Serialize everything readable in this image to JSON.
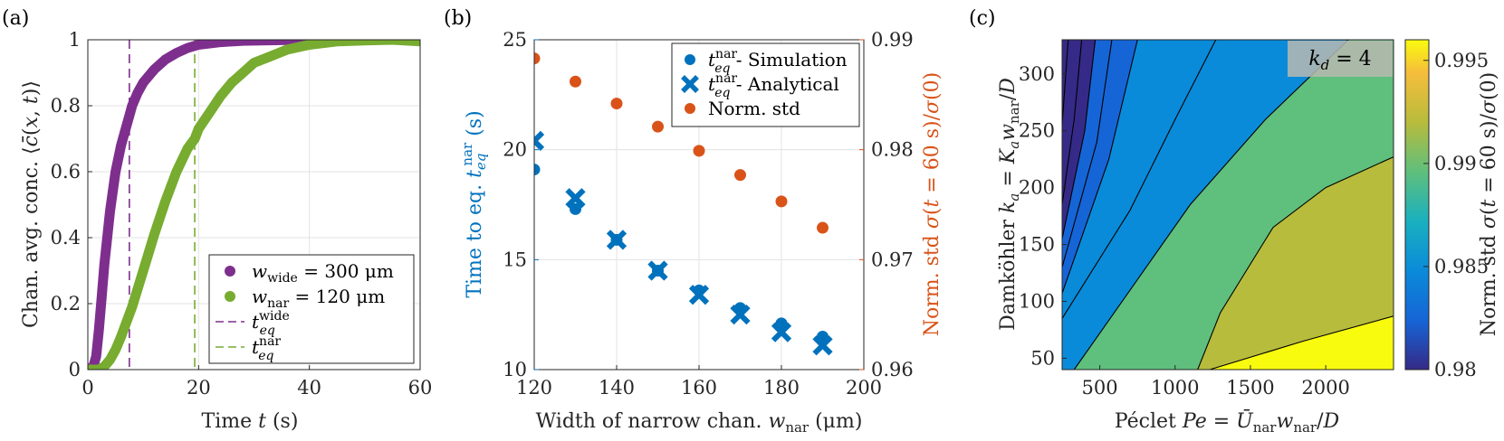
{
  "chart_data": [
    {
      "id": "a",
      "type": "line",
      "panel_label": "(a)",
      "xlabel": "Time t (s)",
      "ylabel": "Chan. avg. conc. ⟨c̄(x,t)⟩",
      "xlim": [
        0,
        60
      ],
      "ylim": [
        0,
        1
      ],
      "xticks": [
        0,
        20,
        40,
        60
      ],
      "yticks": [
        0,
        0.2,
        0.4,
        0.6,
        0.8,
        1
      ],
      "grid": true,
      "legend_position": "bottom-right",
      "series": [
        {
          "name": "w_wide = 300 μm",
          "color": "#7E2F8E",
          "points": [
            [
              0,
              0
            ],
            [
              1,
              0.01
            ],
            [
              1.5,
              0.04
            ],
            [
              2,
              0.12
            ],
            [
              2.5,
              0.22
            ],
            [
              3,
              0.32
            ],
            [
              4,
              0.48
            ],
            [
              5,
              0.6
            ],
            [
              6,
              0.68
            ],
            [
              7,
              0.74
            ],
            [
              7.5,
              0.77
            ],
            [
              8,
              0.8
            ],
            [
              9,
              0.84
            ],
            [
              10,
              0.87
            ],
            [
              12,
              0.91
            ],
            [
              14,
              0.94
            ],
            [
              16,
              0.96
            ],
            [
              18,
              0.975
            ],
            [
              20,
              0.985
            ],
            [
              24,
              0.993
            ],
            [
              28,
              0.997
            ],
            [
              35,
              0.999
            ],
            [
              45,
              1.0
            ],
            [
              60,
              1.0
            ]
          ]
        },
        {
          "name": "w_nar = 120 μm",
          "color": "#77AC30",
          "points": [
            [
              0,
              0
            ],
            [
              2,
              0
            ],
            [
              3,
              0.01
            ],
            [
              4,
              0.03
            ],
            [
              5,
              0.06
            ],
            [
              6,
              0.1
            ],
            [
              8,
              0.19
            ],
            [
              10,
              0.3
            ],
            [
              12,
              0.41
            ],
            [
              14,
              0.51
            ],
            [
              16,
              0.6
            ],
            [
              18,
              0.67
            ],
            [
              19.3,
              0.7
            ],
            [
              20,
              0.73
            ],
            [
              22,
              0.78
            ],
            [
              24,
              0.83
            ],
            [
              26,
              0.87
            ],
            [
              28,
              0.9
            ],
            [
              30,
              0.93
            ],
            [
              33,
              0.95
            ],
            [
              36,
              0.97
            ],
            [
              40,
              0.985
            ],
            [
              45,
              0.995
            ],
            [
              50,
              0.998
            ],
            [
              55,
              1.0
            ],
            [
              60,
              0.995
            ]
          ]
        }
      ],
      "vlines": [
        {
          "name": "t_eq^wide",
          "x": 7.5,
          "color": "#7E2F8E"
        },
        {
          "name": "t_eq^nar",
          "x": 19.3,
          "color": "#77AC30"
        }
      ],
      "legend": [
        {
          "kind": "dot",
          "color": "#7E2F8E",
          "main": "w",
          "sub": "wide",
          "rest": " = 300 μm"
        },
        {
          "kind": "dot",
          "color": "#77AC30",
          "main": "w",
          "sub": "nar",
          "rest": " = 120 μm"
        },
        {
          "kind": "dash",
          "color": "#7E2F8E",
          "main": "t",
          "sub": "eq",
          "sup": "wide",
          "rest": ""
        },
        {
          "kind": "dash",
          "color": "#77AC30",
          "main": "t",
          "sub": "eq",
          "sup": "nar",
          "rest": ""
        }
      ]
    },
    {
      "id": "b",
      "type": "scatter",
      "panel_label": "(b)",
      "xlabel": "Width of narrow chan. w_nar (μm)",
      "ylabel_left": "Time to eq. t_eq^nar (s)",
      "ylabel_right": "Norm. std σ(t = 60 s)/σ(0)",
      "xlim": [
        120,
        200
      ],
      "ylim_left": [
        10,
        25
      ],
      "ylim_right": [
        0.96,
        0.99
      ],
      "xticks": [
        120,
        140,
        160,
        180,
        200
      ],
      "yticks_left": [
        10,
        15,
        20,
        25
      ],
      "yticks_right": [
        0.96,
        0.97,
        0.98,
        0.99
      ],
      "grid": true,
      "legend_position": "top-right",
      "x": [
        120,
        130,
        140,
        150,
        160,
        170,
        180,
        190
      ],
      "series": [
        {
          "name": "t_eq^nar - Simulation",
          "axis": "left",
          "marker": "circle",
          "color": "#0072BD",
          "values": [
            19.1,
            17.3,
            15.9,
            14.5,
            13.6,
            12.8,
            12.1,
            11.5
          ]
        },
        {
          "name": "t_eq^nar - Analytical",
          "axis": "left",
          "marker": "x",
          "color": "#0072BD",
          "values": [
            20.4,
            17.8,
            15.9,
            14.5,
            13.4,
            12.5,
            11.7,
            11.1
          ]
        },
        {
          "name": "Norm. std",
          "axis": "right",
          "marker": "circle",
          "color": "#D95319",
          "values": [
            0.9883,
            0.9862,
            0.9842,
            0.9821,
            0.9799,
            0.9777,
            0.9753,
            0.9729
          ]
        }
      ],
      "legend": [
        {
          "kind": "circle",
          "color": "#0072BD",
          "main": "t",
          "sub": "eq",
          "sup": "nar",
          "rest": " - Simulation"
        },
        {
          "kind": "x",
          "color": "#0072BD",
          "main": "t",
          "sub": "eq",
          "sup": "nar",
          "rest": " - Analytical"
        },
        {
          "kind": "circle",
          "color": "#D95319",
          "main": "Norm. std",
          "sub": "",
          "sup": "",
          "rest": ""
        }
      ]
    },
    {
      "id": "c",
      "type": "heatmap",
      "panel_label": "(c)",
      "xlabel": "Péclet Pe = Ū_nar w_nar / D",
      "ylabel": "Damköhler k_a = K_a w_nar / D",
      "colorbar_label": "Norm. std σ(t = 60 s)/σ(0)",
      "annotation": "k_d = 4",
      "xlim": [
        250,
        2450
      ],
      "ylim": [
        40,
        330
      ],
      "xticks": [
        500,
        1000,
        1500,
        2000
      ],
      "yticks": [
        50,
        100,
        150,
        200,
        250,
        300
      ],
      "clim": [
        0.98,
        0.996
      ],
      "colorbar_ticks": [
        0.98,
        0.985,
        0.99,
        0.995
      ],
      "contour_levels": [
        0.981,
        0.982,
        0.983,
        0.984,
        0.985,
        0.986,
        0.987,
        0.988,
        0.99,
        0.993,
        0.995
      ],
      "contours": [
        {
          "level": 0.981,
          "points": [
            [
              250,
              255
            ],
            [
              290,
              330
            ]
          ]
        },
        {
          "level": 0.982,
          "points": [
            [
              250,
              185
            ],
            [
              330,
              260
            ],
            [
              380,
              330
            ]
          ]
        },
        {
          "level": 0.983,
          "points": [
            [
              250,
              155
            ],
            [
              400,
              250
            ],
            [
              470,
              330
            ]
          ]
        },
        {
          "level": 0.984,
          "points": [
            [
              250,
              130
            ],
            [
              480,
              240
            ],
            [
              580,
              330
            ]
          ]
        },
        {
          "level": 0.985,
          "points": [
            [
              250,
              107
            ],
            [
              560,
              225
            ],
            [
              750,
              330
            ]
          ]
        },
        {
          "level": 0.987,
          "points": [
            [
              250,
              85
            ],
            [
              700,
              180
            ],
            [
              1000,
              260
            ],
            [
              1270,
              330
            ]
          ]
        },
        {
          "level": 0.99,
          "points": [
            [
              330,
              40
            ],
            [
              1100,
              185
            ],
            [
              1600,
              260
            ],
            [
              2150,
              330
            ]
          ]
        },
        {
          "level": 0.993,
          "points": [
            [
              1150,
              40
            ],
            [
              1300,
              90
            ],
            [
              1650,
              165
            ],
            [
              2000,
              200
            ],
            [
              2450,
              227
            ]
          ]
        },
        {
          "level": 0.995,
          "points": [
            [
              1230,
              40
            ],
            [
              1850,
              65
            ],
            [
              2450,
              87
            ]
          ]
        }
      ]
    }
  ]
}
